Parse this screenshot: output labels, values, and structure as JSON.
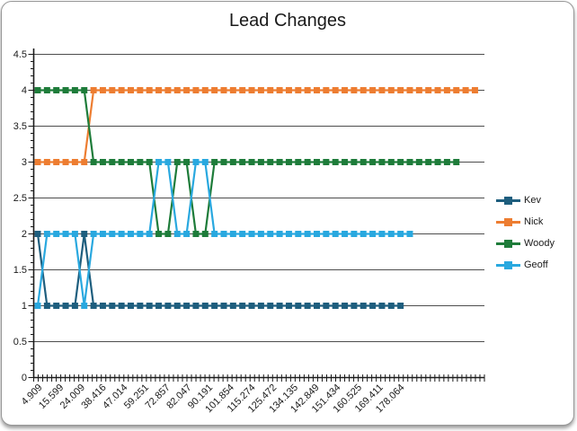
{
  "chart_data": {
    "type": "line",
    "title": "Lead Changes",
    "xlabel": "",
    "ylabel": "",
    "ylim": [
      0,
      4.5
    ],
    "y_tick_step": 0.5,
    "grid": "horizontal-major",
    "legend_position": "right",
    "x_tick_labels": [
      "4.909",
      "15.599",
      "24.009",
      "38.416",
      "47.014",
      "59.251",
      "72.857",
      "82.047",
      "90.191",
      "101.854",
      "115.274",
      "125.472",
      "134.135",
      "142.849",
      "151.434",
      "160.525",
      "169.411",
      "178.064"
    ],
    "y_tick_labels": [
      "4.5",
      "4",
      "3.5",
      "3",
      "2.5",
      "2",
      "1.5",
      "1",
      "0.5",
      "0"
    ],
    "series": [
      {
        "name": "Kev",
        "color": "#1E5E7E",
        "values": [
          2,
          1,
          1,
          1,
          1,
          2,
          1,
          1,
          1,
          1,
          1,
          1,
          1,
          1,
          1,
          1,
          1,
          1,
          1,
          1,
          1,
          1,
          1,
          1,
          1,
          1,
          1,
          1,
          1,
          1,
          1,
          1,
          1,
          1,
          1,
          1,
          1,
          1,
          1,
          1
        ]
      },
      {
        "name": "Nick",
        "color": "#ED7D31",
        "values": [
          3,
          3,
          3,
          3,
          3,
          3,
          4,
          4,
          4,
          4,
          4,
          4,
          4,
          4,
          4,
          4,
          4,
          4,
          4,
          4,
          4,
          4,
          4,
          4,
          4,
          4,
          4,
          4,
          4,
          4,
          4,
          4,
          4,
          4,
          4,
          4,
          4,
          4,
          4,
          4,
          4,
          4,
          4,
          4,
          4,
          4,
          4,
          4
        ]
      },
      {
        "name": "Woody",
        "color": "#1E7C3A",
        "values": [
          4,
          4,
          4,
          4,
          4,
          4,
          3,
          3,
          3,
          3,
          3,
          3,
          3,
          2,
          2,
          3,
          3,
          2,
          2,
          3,
          3,
          3,
          3,
          3,
          3,
          3,
          3,
          3,
          3,
          3,
          3,
          3,
          3,
          3,
          3,
          3,
          3,
          3,
          3,
          3,
          3,
          3,
          3,
          3,
          3,
          3
        ]
      },
      {
        "name": "Geoff",
        "color": "#29A8DF",
        "values": [
          1,
          2,
          2,
          2,
          2,
          1,
          2,
          2,
          2,
          2,
          2,
          2,
          2,
          3,
          3,
          2,
          2,
          3,
          3,
          2,
          2,
          2,
          2,
          2,
          2,
          2,
          2,
          2,
          2,
          2,
          2,
          2,
          2,
          2,
          2,
          2,
          2,
          2,
          2,
          2,
          2
        ]
      }
    ]
  },
  "colors": {
    "gridline": "#4d4d4d",
    "axis": "#1a1a1a",
    "tick_label": "#1a1a1a",
    "frame_border": "#979797"
  }
}
